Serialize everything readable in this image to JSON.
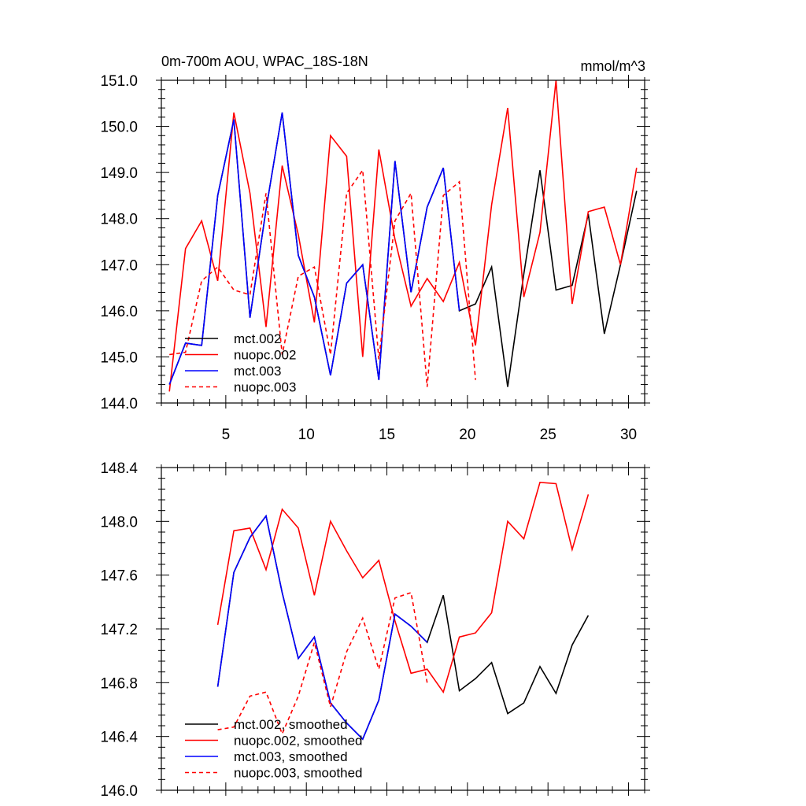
{
  "chart_data": [
    {
      "type": "line",
      "title": "0m-700m AOU, WPAC_18S-18N",
      "units": "mmol/m^3",
      "xlim": [
        1,
        31
      ],
      "ylim": [
        144.0,
        151.0
      ],
      "xticks": [
        5,
        10,
        15,
        20,
        25,
        30
      ],
      "yticks": [
        144.0,
        145.0,
        146.0,
        147.0,
        148.0,
        149.0,
        150.0,
        151.0
      ],
      "legend_position": "bottom-left",
      "series": [
        {
          "name": "mct.002",
          "color": "#000000",
          "dash": "solid",
          "x": [
            1.5,
            2.5,
            3.5,
            4.5,
            5.5,
            6.5,
            7.5,
            8.5,
            9.5,
            10.5,
            11.5,
            12.5,
            13.5,
            14.5,
            15.5,
            16.5,
            17.5,
            18.5,
            19.5,
            20.5,
            21.5,
            22.5,
            23.5,
            24.5,
            25.5,
            26.5,
            27.5,
            28.5,
            29.5,
            30.5
          ],
          "y": [
            144.4,
            145.3,
            145.25,
            148.5,
            150.15,
            145.85,
            148.2,
            150.3,
            147.2,
            146.3,
            144.6,
            146.6,
            147.0,
            144.5,
            149.25,
            146.4,
            148.25,
            149.1,
            146.0,
            146.15,
            146.95,
            144.35,
            146.8,
            149.05,
            146.45,
            146.55,
            148.1,
            145.5,
            147.0,
            148.6
          ]
        },
        {
          "name": "nuopc.002",
          "color": "#ff0000",
          "dash": "solid",
          "x": [
            1.5,
            2.5,
            3.5,
            4.5,
            5.5,
            6.5,
            7.5,
            8.5,
            9.5,
            10.5,
            11.5,
            12.5,
            13.5,
            14.5,
            15.5,
            16.5,
            17.5,
            18.5,
            19.5,
            20.5,
            21.5,
            22.5,
            23.5,
            24.5,
            25.5,
            26.5,
            27.5,
            28.5,
            29.5,
            30.5
          ],
          "y": [
            144.25,
            147.35,
            147.95,
            146.65,
            150.3,
            148.55,
            145.65,
            149.15,
            147.65,
            145.75,
            149.8,
            149.35,
            145.0,
            149.5,
            147.55,
            146.1,
            146.7,
            146.2,
            147.05,
            145.25,
            148.3,
            150.4,
            146.3,
            147.7,
            151.0,
            146.15,
            148.15,
            148.25,
            147.0,
            149.1
          ]
        },
        {
          "name": "mct.003",
          "color": "#0000ff",
          "dash": "solid",
          "x": [
            1.5,
            2.5,
            3.5,
            4.5,
            5.5,
            6.5,
            7.5,
            8.5,
            9.5,
            10.5,
            11.5,
            12.5,
            13.5,
            14.5,
            15.5,
            16.5,
            17.5,
            18.5,
            19.5
          ],
          "y": [
            144.4,
            145.3,
            145.25,
            148.5,
            150.15,
            145.85,
            148.2,
            150.3,
            147.2,
            146.3,
            144.6,
            146.6,
            147.0,
            144.5,
            149.25,
            146.4,
            148.25,
            149.1,
            146.0
          ]
        },
        {
          "name": "nuopc.003",
          "color": "#ff0000",
          "dash": "dashed",
          "x": [
            1.5,
            2.5,
            3.5,
            4.5,
            5.5,
            6.5,
            7.5,
            8.5,
            9.5,
            10.5,
            11.5,
            12.5,
            13.5,
            14.5,
            15.5,
            16.5,
            17.5,
            18.5,
            19.5,
            20.5
          ],
          "y": [
            145.05,
            145.1,
            146.65,
            146.95,
            146.45,
            146.35,
            148.55,
            145.05,
            146.75,
            146.95,
            145.05,
            148.55,
            149.05,
            144.95,
            147.95,
            148.55,
            144.35,
            148.5,
            148.8,
            144.5
          ]
        }
      ]
    },
    {
      "type": "line",
      "xlim": [
        1,
        31
      ],
      "ylim": [
        146.0,
        148.4
      ],
      "xticks": [
        5,
        10,
        15,
        20,
        25,
        30
      ],
      "yticks": [
        146.0,
        146.4,
        146.8,
        147.2,
        147.6,
        148.0,
        148.4
      ],
      "legend_position": "bottom-left",
      "series": [
        {
          "name": "mct.002, smoothed",
          "color": "#000000",
          "dash": "solid",
          "x": [
            4.5,
            5.5,
            6.5,
            7.5,
            8.5,
            9.5,
            10.5,
            11.5,
            12.5,
            13.5,
            14.5,
            15.5,
            16.5,
            17.5,
            18.5,
            19.5,
            20.5,
            21.5,
            22.5,
            23.5,
            24.5,
            25.5,
            26.5,
            27.5
          ],
          "y": [
            146.77,
            147.62,
            147.88,
            148.04,
            147.47,
            146.98,
            147.14,
            146.65,
            146.5,
            146.38,
            146.67,
            147.31,
            147.22,
            147.1,
            147.45,
            146.74,
            146.83,
            146.95,
            146.57,
            146.65,
            146.92,
            146.72,
            147.08,
            147.3
          ]
        },
        {
          "name": "nuopc.002, smoothed",
          "color": "#ff0000",
          "dash": "solid",
          "x": [
            4.5,
            5.5,
            6.5,
            7.5,
            8.5,
            9.5,
            10.5,
            11.5,
            12.5,
            13.5,
            14.5,
            15.5,
            16.5,
            17.5,
            18.5,
            19.5,
            20.5,
            21.5,
            22.5,
            23.5,
            24.5,
            25.5,
            26.5,
            27.5
          ],
          "y": [
            147.23,
            147.93,
            147.95,
            147.64,
            148.09,
            147.95,
            147.45,
            148.0,
            147.78,
            147.58,
            147.71,
            147.26,
            146.87,
            146.9,
            146.73,
            147.14,
            147.17,
            147.32,
            148.0,
            147.87,
            148.29,
            148.28,
            147.79,
            148.2
          ]
        },
        {
          "name": "mct.003, smoothed",
          "color": "#0000ff",
          "dash": "solid",
          "x": [
            4.5,
            5.5,
            6.5,
            7.5,
            8.5,
            9.5,
            10.5,
            11.5,
            12.5,
            13.5,
            14.5,
            15.5,
            16.5,
            17.5
          ],
          "y": [
            146.77,
            147.62,
            147.88,
            148.04,
            147.47,
            146.98,
            147.14,
            146.65,
            146.5,
            146.38,
            146.67,
            147.31,
            147.22,
            147.1
          ]
        },
        {
          "name": "nuopc.003, smoothed",
          "color": "#ff0000",
          "dash": "dashed",
          "x": [
            4.5,
            5.5,
            6.5,
            7.5,
            8.5,
            9.5,
            10.5,
            11.5,
            12.5,
            13.5,
            14.5,
            15.5,
            16.5,
            17.5
          ],
          "y": [
            146.45,
            146.47,
            146.7,
            146.73,
            146.42,
            146.7,
            147.1,
            146.62,
            147.03,
            147.28,
            146.9,
            147.43,
            147.47,
            146.8
          ]
        }
      ]
    }
  ]
}
